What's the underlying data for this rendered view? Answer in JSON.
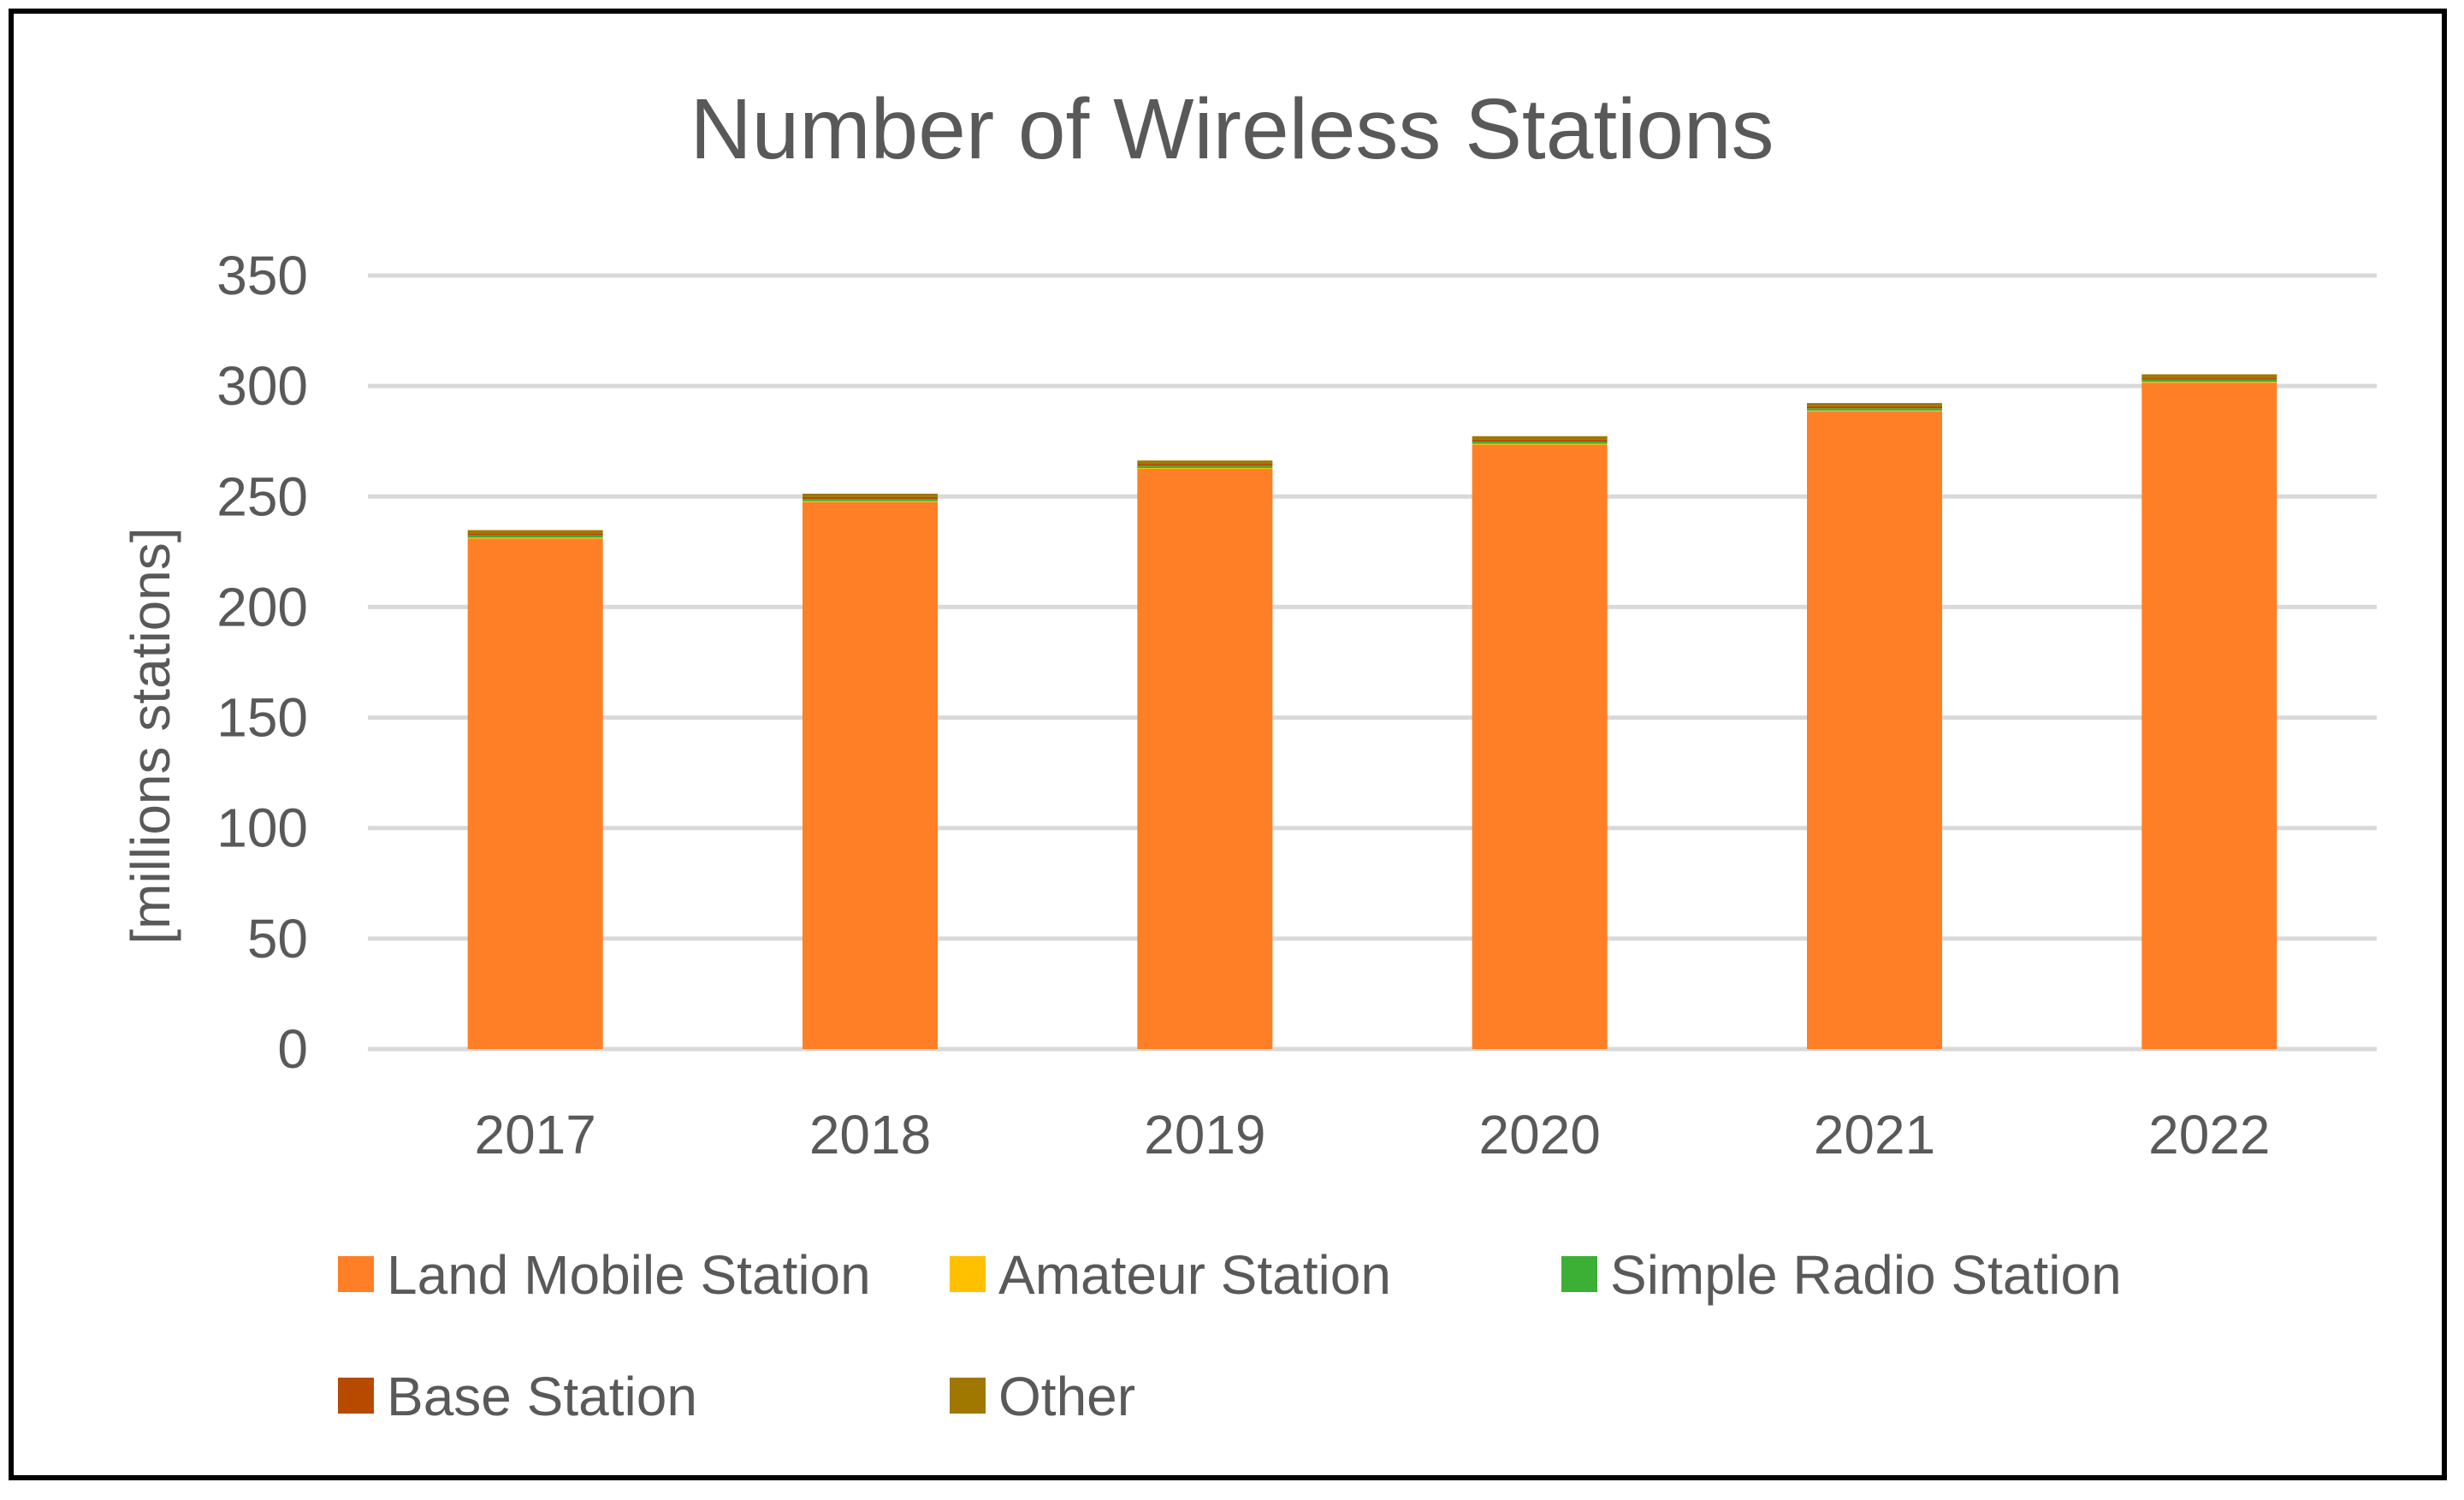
{
  "chart_data": {
    "type": "bar",
    "stacked": true,
    "title": "Number of Wireless Stations",
    "xlabel": "",
    "ylabel": "[millions stations]",
    "ylim": [
      0,
      350
    ],
    "yticks": [
      0,
      50,
      100,
      150,
      200,
      250,
      300,
      350
    ],
    "grid": true,
    "legend_position": "bottom",
    "categories": [
      "2017",
      "2018",
      "2019",
      "2020",
      "2021",
      "2022"
    ],
    "series": [
      {
        "name": "Land Mobile Station",
        "color": "#FF7F27",
        "values": [
          231,
          247.5,
          262.5,
          273.5,
          288.5,
          301.5
        ]
      },
      {
        "name": "Amateur Station",
        "color": "#FFC000",
        "values": [
          0.4,
          0.4,
          0.4,
          0.4,
          0.4,
          0.4
        ]
      },
      {
        "name": "Simple Radio Station",
        "color": "#3CB034",
        "values": [
          1.0,
          1.0,
          1.0,
          1.0,
          1.0,
          1.0
        ]
      },
      {
        "name": "Base Station",
        "color": "#B84A00",
        "values": [
          0.9,
          0.9,
          0.9,
          0.9,
          0.9,
          0.9
        ]
      },
      {
        "name": "Other",
        "color": "#A07800",
        "values": [
          1.5,
          1.5,
          1.5,
          1.5,
          1.5,
          1.5
        ]
      }
    ]
  }
}
